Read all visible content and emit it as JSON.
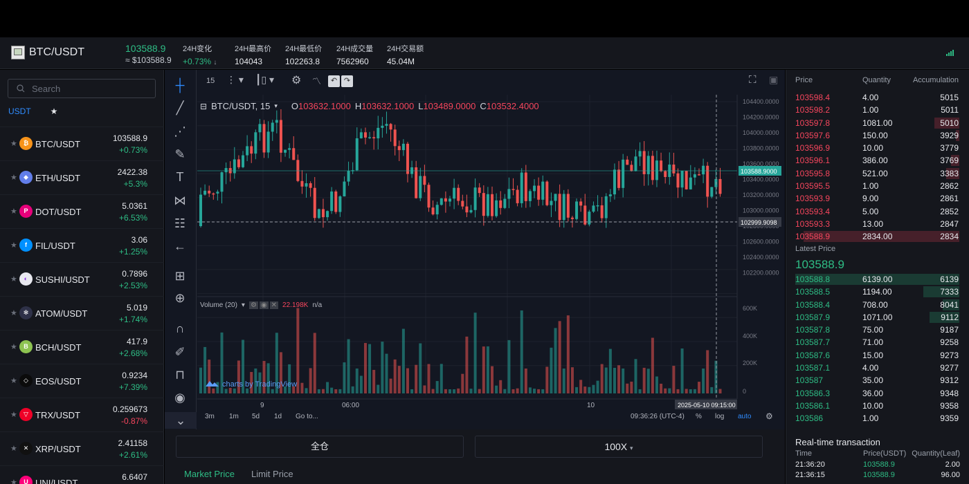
{
  "header": {
    "pair": "BTC/USDT",
    "price": "103588.9",
    "price_sub": "≈ $103588.9",
    "stats": [
      {
        "label": "24H变化",
        "value": "+0.73%",
        "green": true,
        "arrow": "↓"
      },
      {
        "label": "24H最高价",
        "value": "104043"
      },
      {
        "label": "24H最低价",
        "value": "102263.8"
      },
      {
        "label": "24H成交量",
        "value": "7562960"
      },
      {
        "label": "24H交易额",
        "value": "45.04M"
      }
    ]
  },
  "sidebar": {
    "search_placeholder": "Search",
    "tab_usdt": "USDT",
    "tab_fav": "★",
    "coins": [
      {
        "name": "BTC/USDT",
        "price": "103588.9",
        "change": "+0.73%",
        "up": true,
        "icon": "bitcoin-icon",
        "color": "#f7931a",
        "glyph": "₿"
      },
      {
        "name": "ETH/USDT",
        "price": "2422.38",
        "change": "+5.3%",
        "up": true,
        "icon": "ethereum-icon",
        "color": "#627eea",
        "glyph": "◆"
      },
      {
        "name": "DOT/USDT",
        "price": "5.0361",
        "change": "+6.53%",
        "up": true,
        "icon": "polkadot-icon",
        "color": "#e6007a",
        "glyph": "P"
      },
      {
        "name": "FIL/USDT",
        "price": "3.06",
        "change": "+1.25%",
        "up": true,
        "icon": "filecoin-icon",
        "color": "#0090ff",
        "glyph": "f"
      },
      {
        "name": "SUSHI/USDT",
        "price": "0.7896",
        "change": "+2.53%",
        "up": true,
        "icon": "sushi-icon",
        "color": "#e8e8ef",
        "glyph": "◐"
      },
      {
        "name": "ATOM/USDT",
        "price": "5.019",
        "change": "+1.74%",
        "up": true,
        "icon": "cosmos-icon",
        "color": "#2e3148",
        "glyph": "✻"
      },
      {
        "name": "BCH/USDT",
        "price": "417.9",
        "change": "+2.68%",
        "up": true,
        "icon": "bitcoin-cash-icon",
        "color": "#8dc351",
        "glyph": "B"
      },
      {
        "name": "EOS/USDT",
        "price": "0.9234",
        "change": "+7.39%",
        "up": true,
        "icon": "eos-icon",
        "color": "#0b0b0b",
        "glyph": "◇"
      },
      {
        "name": "TRX/USDT",
        "price": "0.259673",
        "change": "-0.87%",
        "up": false,
        "icon": "tron-icon",
        "color": "#ef0027",
        "glyph": "▽"
      },
      {
        "name": "XRP/USDT",
        "price": "2.41158",
        "change": "+2.61%",
        "up": true,
        "icon": "xrp-icon",
        "color": "#111111",
        "glyph": "✕"
      },
      {
        "name": "UNI/USDT",
        "price": "6.6407",
        "change": "",
        "up": true,
        "icon": "uniswap-icon",
        "color": "#ff007a",
        "glyph": "U"
      }
    ]
  },
  "chart": {
    "interval": "15",
    "legend_symbol": "BTC/USDT, 15",
    "o_label": "O",
    "o": "103632.1000",
    "h_label": "H",
    "h": "103632.1000",
    "l_label": "L",
    "l": "103489.0000",
    "c_label": "C",
    "c": "103532.4000",
    "price_ticks": [
      "104400.0000",
      "104200.0000",
      "104000.0000",
      "103800.0000",
      "103600.0000",
      "103400.0000",
      "103200.0000",
      "103000.0000",
      "102800.0000",
      "102600.0000",
      "102400.0000",
      "102200.0000"
    ],
    "last_price_tag": "103588.9000",
    "cursor_price_tag": "102999.9098",
    "volume_label": "Volume (20)",
    "volume_value": "22.198K",
    "volume_na": "n/a",
    "volume_ticks": [
      "600K",
      "400K",
      "200K",
      "0"
    ],
    "time_ticks": [
      "9",
      "06:00",
      "10"
    ],
    "cursor_time_tag": "2025-05-10 09:15:00",
    "watermark": "charts by TradingView",
    "ranges": [
      "3m",
      "1m",
      "5d",
      "1d"
    ],
    "goto": "Go to...",
    "clock": "09:36:26 (UTC-4)",
    "pct": "%",
    "log": "log",
    "auto": "auto",
    "accent": "#26a69a",
    "down": "#ef5350"
  },
  "trade": {
    "margin_mode": "全仓",
    "leverage": "100X",
    "tab_market": "Market Price",
    "tab_limit": "Limit Price"
  },
  "orderbook": {
    "headers": {
      "price": "Price",
      "qty": "Quantity",
      "acc": "Accumulation"
    },
    "asks": [
      {
        "p": "103598.4",
        "q": "4.00",
        "a": "5015",
        "d": 0
      },
      {
        "p": "103598.2",
        "q": "1.00",
        "a": "5011",
        "d": 0
      },
      {
        "p": "103597.8",
        "q": "1081.00",
        "a": "5010",
        "d": 0.15
      },
      {
        "p": "103597.6",
        "q": "150.00",
        "a": "3929",
        "d": 0.02
      },
      {
        "p": "103596.9",
        "q": "10.00",
        "a": "3779",
        "d": 0
      },
      {
        "p": "103596.1",
        "q": "386.00",
        "a": "3769",
        "d": 0.05
      },
      {
        "p": "103595.8",
        "q": "521.00",
        "a": "3383",
        "d": 0.08
      },
      {
        "p": "103595.5",
        "q": "1.00",
        "a": "2862",
        "d": 0
      },
      {
        "p": "103593.9",
        "q": "9.00",
        "a": "2861",
        "d": 0
      },
      {
        "p": "103593.4",
        "q": "5.00",
        "a": "2852",
        "d": 0
      },
      {
        "p": "103593.3",
        "q": "13.00",
        "a": "2847",
        "d": 0
      },
      {
        "p": "103588.9",
        "q": "2834.00",
        "a": "2834",
        "d": 0.95
      }
    ],
    "latest_label": "Latest Price",
    "latest_price": "103588.9",
    "bids": [
      {
        "p": "103588.8",
        "q": "6139.00",
        "a": "6139",
        "d": 1.0
      },
      {
        "p": "103588.5",
        "q": "1194.00",
        "a": "7333",
        "d": 0.22
      },
      {
        "p": "103588.4",
        "q": "708.00",
        "a": "8041",
        "d": 0.1
      },
      {
        "p": "103587.9",
        "q": "1071.00",
        "a": "9112",
        "d": 0.18
      },
      {
        "p": "103587.8",
        "q": "75.00",
        "a": "9187",
        "d": 0
      },
      {
        "p": "103587.7",
        "q": "71.00",
        "a": "9258",
        "d": 0
      },
      {
        "p": "103587.6",
        "q": "15.00",
        "a": "9273",
        "d": 0
      },
      {
        "p": "103587.1",
        "q": "4.00",
        "a": "9277",
        "d": 0
      },
      {
        "p": "103587",
        "q": "35.00",
        "a": "9312",
        "d": 0
      },
      {
        "p": "103586.3",
        "q": "36.00",
        "a": "9348",
        "d": 0
      },
      {
        "p": "103586.1",
        "q": "10.00",
        "a": "9358",
        "d": 0
      },
      {
        "p": "103586",
        "q": "1.00",
        "a": "9359",
        "d": 0
      }
    ],
    "ask_color": "#f6465d",
    "bid_color": "#2ebd85"
  },
  "realtime": {
    "title": "Real-time transaction",
    "headers": {
      "time": "Time",
      "price": "Price(USDT)",
      "qty": "Quantity(Leaf)"
    },
    "rows": [
      {
        "time": "21:36:20",
        "price": "103588.9",
        "qty": "2.00"
      },
      {
        "time": "21:36:15",
        "price": "103588.9",
        "qty": "96.00"
      }
    ]
  }
}
